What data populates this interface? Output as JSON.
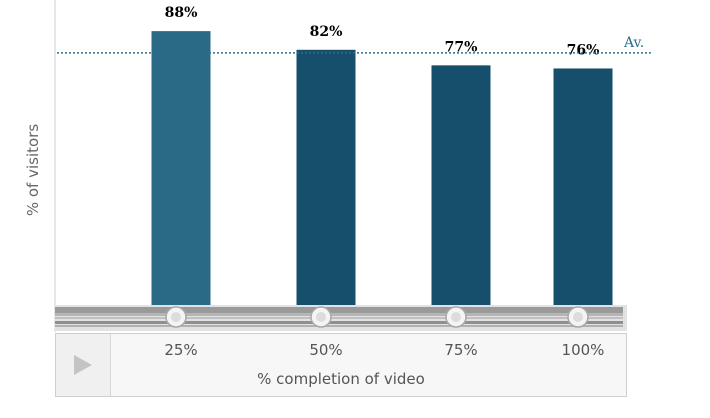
{
  "chart_data": {
    "type": "bar",
    "categories": [
      "25%",
      "50%",
      "75%",
      "100%"
    ],
    "values": [
      88,
      82,
      77,
      76
    ],
    "data_labels": [
      "88%",
      "82%",
      "77%",
      "76%"
    ],
    "ylabel": "% of visitors",
    "xlabel": "% completion of video",
    "ylim": [
      0,
      98
    ],
    "average_line": {
      "label": "Av.",
      "value": 81
    },
    "grid": false,
    "colors": {
      "first_bar": "#2b6a86",
      "bar": "#154f6b",
      "average_line": "#2a6f8a",
      "label": "#000000"
    }
  },
  "player": {
    "play_icon": "play-icon"
  }
}
